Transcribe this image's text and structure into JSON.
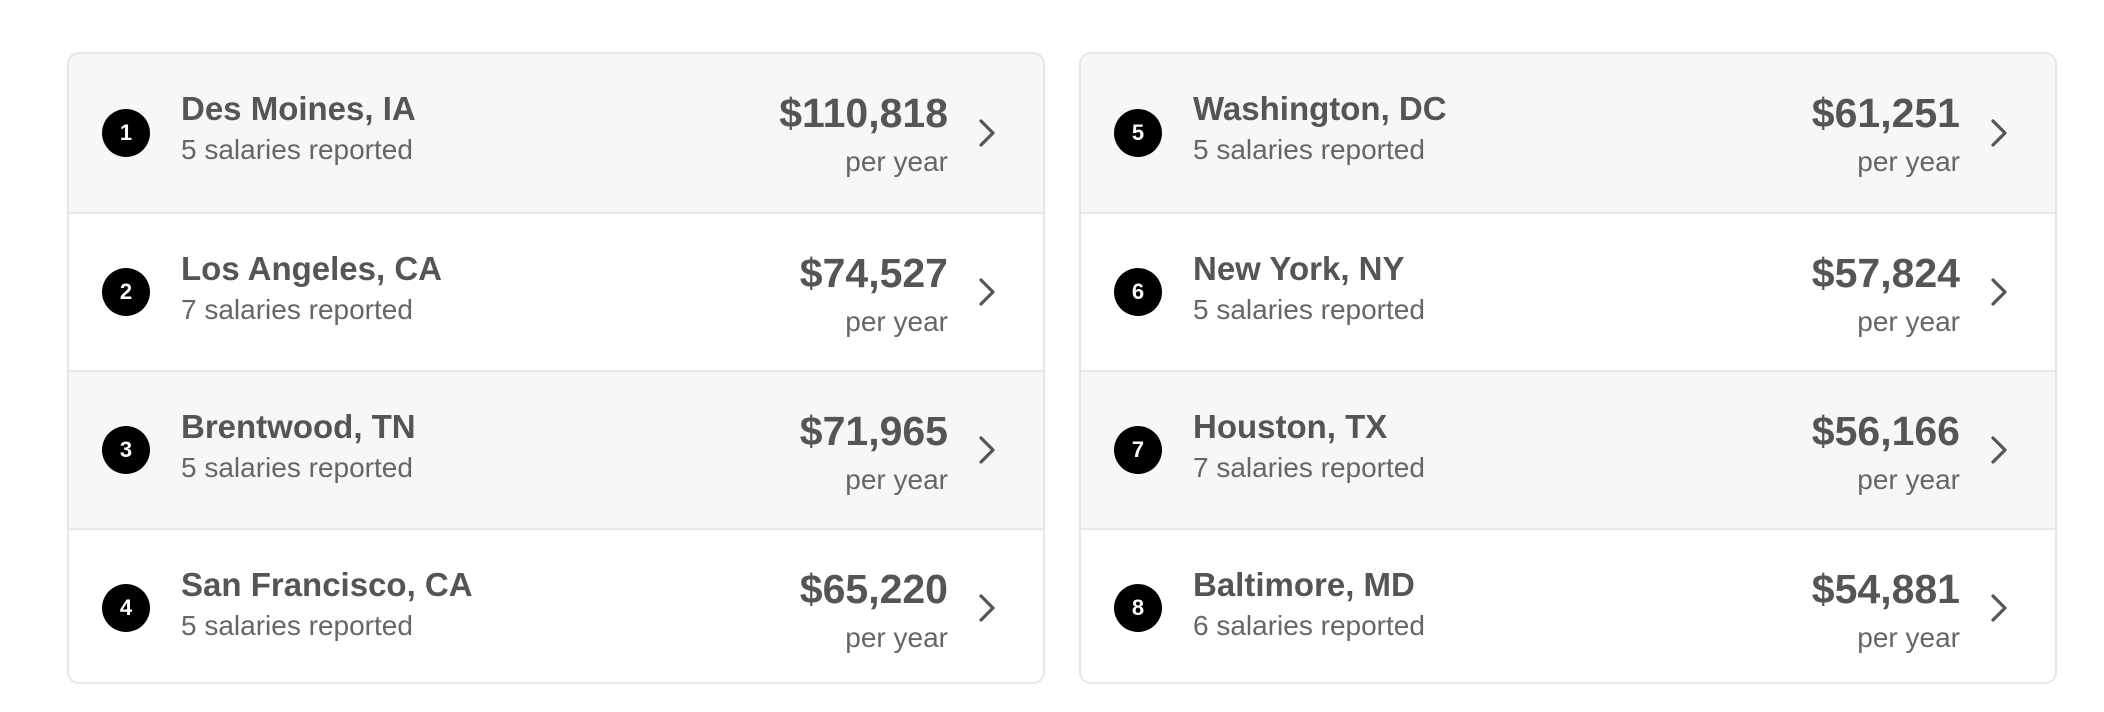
{
  "left_panel": {
    "rows": [
      {
        "rank": "1",
        "city": "Des Moines, IA",
        "count": "5 salaries reported",
        "amount": "$110,818",
        "period": "per year"
      },
      {
        "rank": "2",
        "city": "Los Angeles, CA",
        "count": "7 salaries reported",
        "amount": "$74,527",
        "period": "per year"
      },
      {
        "rank": "3",
        "city": "Brentwood, TN",
        "count": "5 salaries reported",
        "amount": "$71,965",
        "period": "per year"
      },
      {
        "rank": "4",
        "city": "San Francisco, CA",
        "count": "5 salaries reported",
        "amount": "$65,220",
        "period": "per year"
      }
    ]
  },
  "right_panel": {
    "rows": [
      {
        "rank": "5",
        "city": "Washington, DC",
        "count": "5 salaries reported",
        "amount": "$61,251",
        "period": "per year"
      },
      {
        "rank": "6",
        "city": "New York, NY",
        "count": "5 salaries reported",
        "amount": "$57,824",
        "period": "per year"
      },
      {
        "rank": "7",
        "city": "Houston, TX",
        "count": "7 salaries reported",
        "amount": "$56,166",
        "period": "per year"
      },
      {
        "rank": "8",
        "city": "Baltimore, MD",
        "count": "6 salaries reported",
        "amount": "$54,881",
        "period": "per year"
      }
    ]
  },
  "icons": {
    "row_chevron": "chevron-right-icon"
  },
  "colors": {
    "rank_badge": "#000000",
    "text": "#555555",
    "row_shaded": "#f7f7f7",
    "border": "#e6e6e6"
  }
}
